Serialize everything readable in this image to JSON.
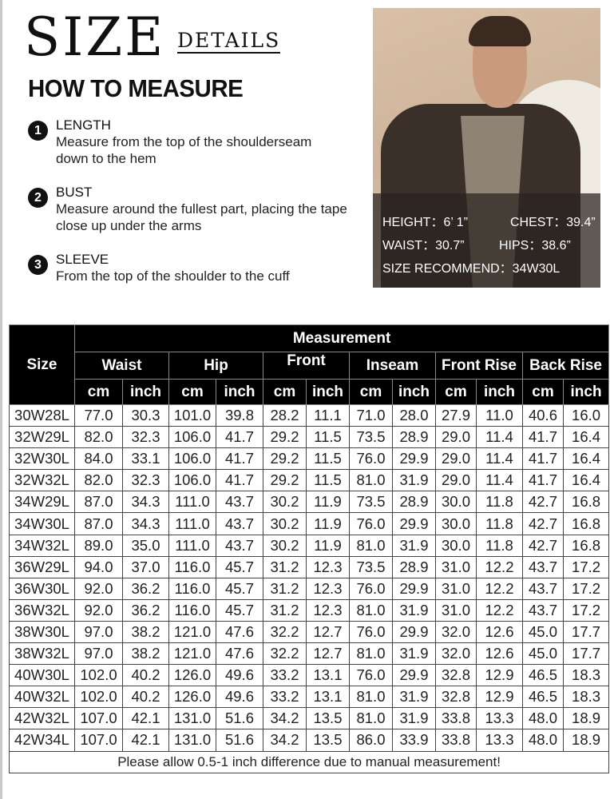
{
  "header": {
    "size": "SIZE",
    "details": "DETAILS",
    "how": "HOW TO MEASURE"
  },
  "steps": [
    {
      "num": "1",
      "title": "LENGTH",
      "desc": "Measure from the top of the shoulderseam down to the hem"
    },
    {
      "num": "2",
      "title": "BUST",
      "desc": "Measure around the fullest part, placing the tape close up under the arms"
    },
    {
      "num": "3",
      "title": "SLEEVE",
      "desc": "From the top of the shoulder to the cuff"
    }
  ],
  "model": {
    "height": "HEIGHT：6’ 1”",
    "chest": "CHEST：39.4”",
    "waist": "WAIST：30.7”",
    "hips": "HIPS：38.6”",
    "recommend": "SIZE RECOMMEND：34W30L"
  },
  "table": {
    "size_header": "Size",
    "measurement": "Measurement",
    "groups": [
      "Waist",
      "Hip",
      "Front",
      "Inseam",
      "Front Rise",
      "Back Rise"
    ],
    "units": [
      "cm",
      "inch"
    ],
    "rows": [
      [
        "30W28L",
        "77.0",
        "30.3",
        "101.0",
        "39.8",
        "28.2",
        "11.1",
        "71.0",
        "28.0",
        "27.9",
        "11.0",
        "40.6",
        "16.0"
      ],
      [
        "32W29L",
        "82.0",
        "32.3",
        "106.0",
        "41.7",
        "29.2",
        "11.5",
        "73.5",
        "28.9",
        "29.0",
        "11.4",
        "41.7",
        "16.4"
      ],
      [
        "32W30L",
        "84.0",
        "33.1",
        "106.0",
        "41.7",
        "29.2",
        "11.5",
        "76.0",
        "29.9",
        "29.0",
        "11.4",
        "41.7",
        "16.4"
      ],
      [
        "32W32L",
        "82.0",
        "32.3",
        "106.0",
        "41.7",
        "29.2",
        "11.5",
        "81.0",
        "31.9",
        "29.0",
        "11.4",
        "41.7",
        "16.4"
      ],
      [
        "34W29L",
        "87.0",
        "34.3",
        "111.0",
        "43.7",
        "30.2",
        "11.9",
        "73.5",
        "28.9",
        "30.0",
        "11.8",
        "42.7",
        "16.8"
      ],
      [
        "34W30L",
        "87.0",
        "34.3",
        "111.0",
        "43.7",
        "30.2",
        "11.9",
        "76.0",
        "29.9",
        "30.0",
        "11.8",
        "42.7",
        "16.8"
      ],
      [
        "34W32L",
        "89.0",
        "35.0",
        "111.0",
        "43.7",
        "30.2",
        "11.9",
        "81.0",
        "31.9",
        "30.0",
        "11.8",
        "42.7",
        "16.8"
      ],
      [
        "36W29L",
        "94.0",
        "37.0",
        "116.0",
        "45.7",
        "31.2",
        "12.3",
        "73.5",
        "28.9",
        "31.0",
        "12.2",
        "43.7",
        "17.2"
      ],
      [
        "36W30L",
        "92.0",
        "36.2",
        "116.0",
        "45.7",
        "31.2",
        "12.3",
        "76.0",
        "29.9",
        "31.0",
        "12.2",
        "43.7",
        "17.2"
      ],
      [
        "36W32L",
        "92.0",
        "36.2",
        "116.0",
        "45.7",
        "31.2",
        "12.3",
        "81.0",
        "31.9",
        "31.0",
        "12.2",
        "43.7",
        "17.2"
      ],
      [
        "38W30L",
        "97.0",
        "38.2",
        "121.0",
        "47.6",
        "32.2",
        "12.7",
        "76.0",
        "29.9",
        "32.0",
        "12.6",
        "45.0",
        "17.7"
      ],
      [
        "38W32L",
        "97.0",
        "38.2",
        "121.0",
        "47.6",
        "32.2",
        "12.7",
        "81.0",
        "31.9",
        "32.0",
        "12.6",
        "45.0",
        "17.7"
      ],
      [
        "40W30L",
        "102.0",
        "40.2",
        "126.0",
        "49.6",
        "33.2",
        "13.1",
        "76.0",
        "29.9",
        "32.8",
        "12.9",
        "46.5",
        "18.3"
      ],
      [
        "40W32L",
        "102.0",
        "40.2",
        "126.0",
        "49.6",
        "33.2",
        "13.1",
        "81.0",
        "31.9",
        "32.8",
        "12.9",
        "46.5",
        "18.3"
      ],
      [
        "42W32L",
        "107.0",
        "42.1",
        "131.0",
        "51.6",
        "34.2",
        "13.5",
        "81.0",
        "31.9",
        "33.8",
        "13.3",
        "48.0",
        "18.9"
      ],
      [
        "42W34L",
        "107.0",
        "42.1",
        "131.0",
        "51.6",
        "34.2",
        "13.5",
        "86.0",
        "33.9",
        "33.8",
        "13.3",
        "48.0",
        "18.9"
      ]
    ],
    "note": "Please allow 0.5-1 inch difference due to manual measurement!"
  }
}
